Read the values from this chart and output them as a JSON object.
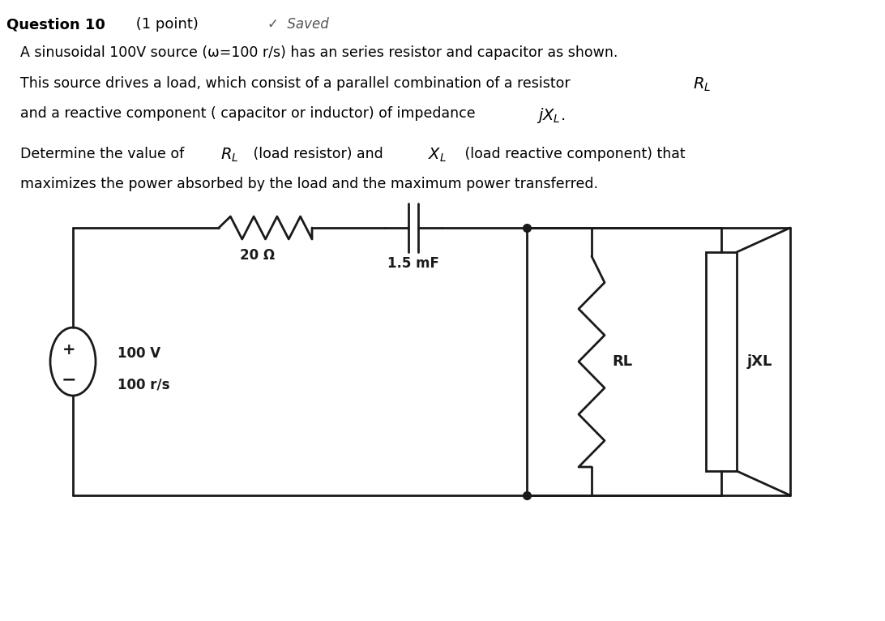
{
  "bg_color": "#ffffff",
  "title_bold": "Question 10",
  "title_normal": " (1 point)",
  "saved_text": "✓  Saved",
  "line1": "A sinusoidal 100V source (ω=100 r/s) has an series resistor and capacitor as shown.",
  "line2": "This source drives a load, which consist of a parallel combination of a resistor ",
  "line2_math": "$R_L$",
  "line3_pre": "and a reactive component ( capacitor or inductor) of impedance ",
  "line3_math": "$jX_L$",
  "line3_post": ".",
  "line4": "Determine the value of ",
  "line4_math1": "$R_L$",
  "line4_mid": " (load resistor) and ",
  "line4_math2": "$X_L$",
  "line4_end": " (load reactive component) that",
  "line5": "maximizes the power absorbed by the load and the maximum power transferred.",
  "resistor_label": "20 Ω",
  "cap_label": "1.5 mF",
  "rl_label": "RL",
  "jxl_label": "jXL",
  "source_label1": "100 V",
  "source_label2": "100 r/s",
  "lw": 2.0,
  "circuit_color": "#1a1a1a"
}
